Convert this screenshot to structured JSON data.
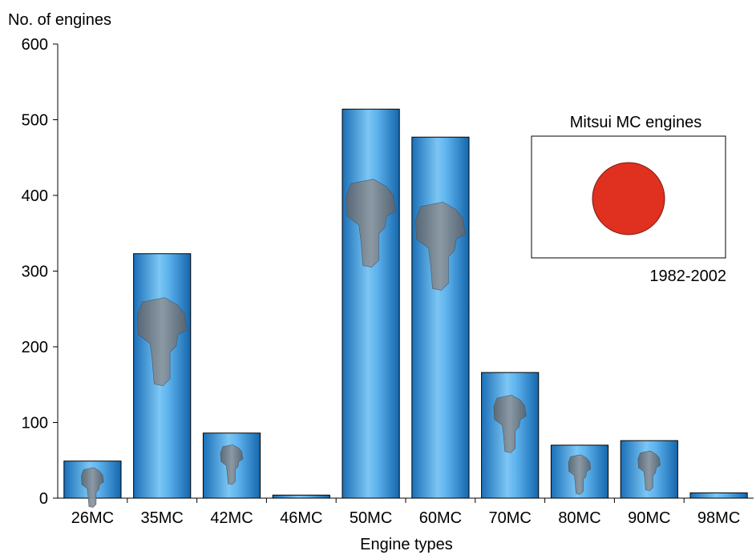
{
  "chart_data": {
    "type": "bar",
    "ylabel": "No. of engines",
    "xlabel": "Engine types",
    "ylim": [
      0,
      600
    ],
    "yticks": [
      0,
      100,
      200,
      300,
      400,
      500,
      600
    ],
    "categories": [
      "26MC",
      "35MC",
      "42MC",
      "46MC",
      "50MC",
      "60MC",
      "70MC",
      "80MC",
      "90MC",
      "98MC"
    ],
    "values": [
      49,
      323,
      86,
      4,
      514,
      477,
      166,
      70,
      76,
      7
    ],
    "bar_color": "#2b8fd6",
    "engine_icon_on_bars": [
      true,
      true,
      true,
      false,
      true,
      true,
      true,
      true,
      true,
      false
    ],
    "inset": {
      "title": "Mitsui MC engines",
      "caption": "1982-2002",
      "flag_circle_color": "#e03020"
    }
  }
}
